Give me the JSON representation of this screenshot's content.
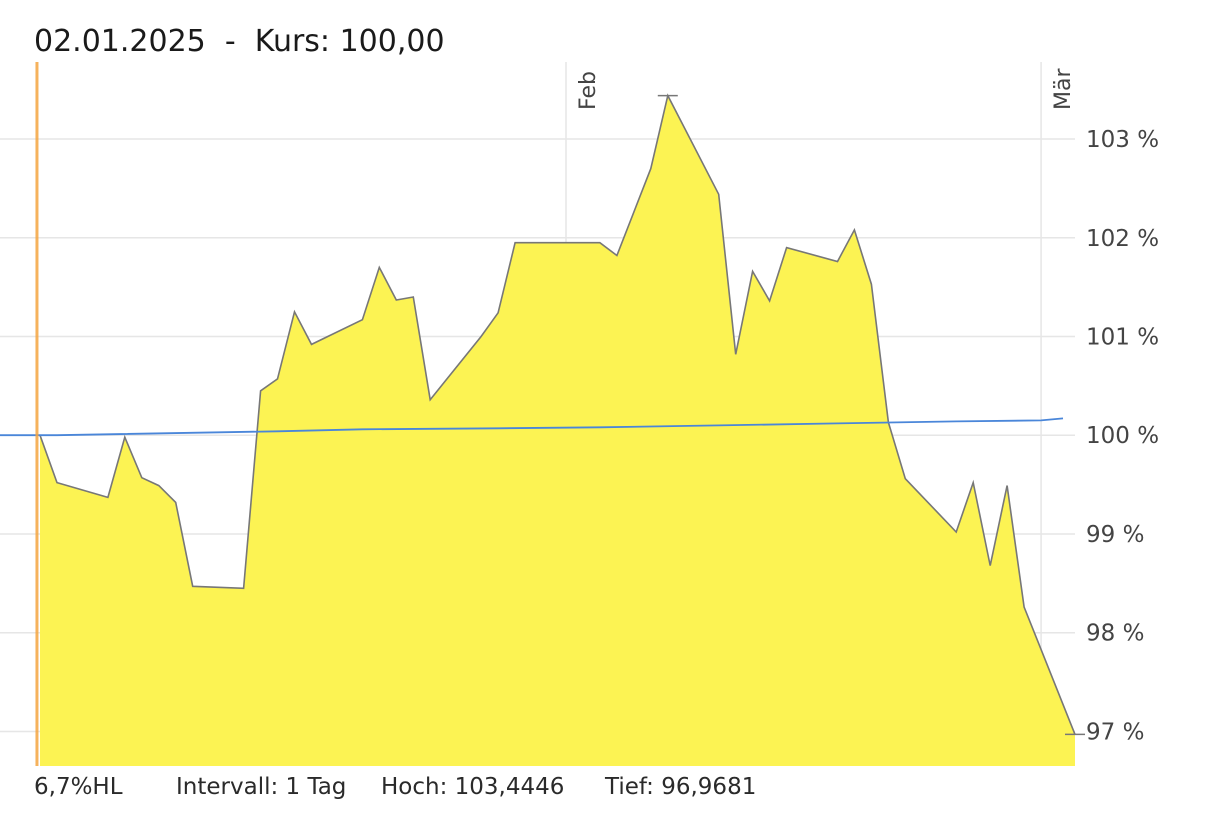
{
  "header": {
    "date": "02.01.2025",
    "separator": "-",
    "price_label": "Kurs: 100,00"
  },
  "footer": {
    "name": "6,7%HL",
    "interval": "Intervall: 1 Tag",
    "high": "Hoch: 103,4446",
    "low": "Tief: 96,9681"
  },
  "colors": {
    "area_fill": "#fcf353",
    "area_line": "#777777",
    "benchmark_line": "#4a86d9",
    "cursor_line": "#f5a540",
    "grid": "#e6e6e6"
  },
  "chart_data": {
    "type": "area",
    "y_unit": "%",
    "ylim": [
      96.65,
      103.78
    ],
    "yticks": [
      97,
      98,
      99,
      100,
      101,
      102,
      103
    ],
    "ytick_labels": [
      "97 %",
      "98 %",
      "99 %",
      "100 %",
      "101 %",
      "102 %",
      "103 %"
    ],
    "x_month_labels": [
      {
        "label": "Feb",
        "date": "2025-02-01"
      },
      {
        "label": "Mär",
        "date": "2025-03-01"
      }
    ],
    "x_start": "2025-01-01",
    "x_end": "2025-03-03",
    "cursor_date": "2025-01-02",
    "grid": true,
    "series": [
      {
        "dates": [
          "2025-01-01",
          "2025-01-02",
          "2025-01-05",
          "2025-01-06",
          "2025-01-07",
          "2025-01-08",
          "2025-01-09",
          "2025-01-10",
          "2025-01-13",
          "2025-01-14",
          "2025-01-15",
          "2025-01-16",
          "2025-01-17",
          "2025-01-20",
          "2025-01-21",
          "2025-01-22",
          "2025-01-23",
          "2025-01-24",
          "2025-01-27",
          "2025-01-28",
          "2025-01-29",
          "2025-01-30",
          "2025-02-03",
          "2025-02-04",
          "2025-02-06",
          "2025-02-07",
          "2025-02-10",
          "2025-02-11",
          "2025-02-12",
          "2025-02-13",
          "2025-02-14",
          "2025-02-17",
          "2025-02-18",
          "2025-02-19",
          "2025-02-20",
          "2025-02-21",
          "2025-02-24",
          "2025-02-25",
          "2025-02-26",
          "2025-02-27",
          "2025-02-28",
          "2025-03-03"
        ],
        "values": [
          100.0,
          99.52,
          99.37,
          99.98,
          99.57,
          99.49,
          99.32,
          98.47,
          98.45,
          100.45,
          100.57,
          101.25,
          100.92,
          101.17,
          101.7,
          101.37,
          101.4,
          100.36,
          101.0,
          101.24,
          101.95,
          101.95,
          101.95,
          101.82,
          102.7,
          103.44,
          102.44,
          100.82,
          101.66,
          101.36,
          101.9,
          101.76,
          102.08,
          101.53,
          100.13,
          99.56,
          99.02,
          99.52,
          98.68,
          99.49,
          98.26,
          96.97
        ]
      },
      {
        "dates": [
          "2025-01-01",
          "2025-01-02",
          "2025-01-15",
          "2025-01-20",
          "2025-01-28",
          "2025-02-03",
          "2025-02-10",
          "2025-02-17",
          "2025-02-24",
          "2025-03-01",
          "2025-03-03"
        ],
        "values": [
          100.0,
          100.0,
          100.04,
          100.06,
          100.07,
          100.08,
          100.1,
          100.12,
          100.14,
          100.15,
          100.17
        ]
      }
    ]
  }
}
